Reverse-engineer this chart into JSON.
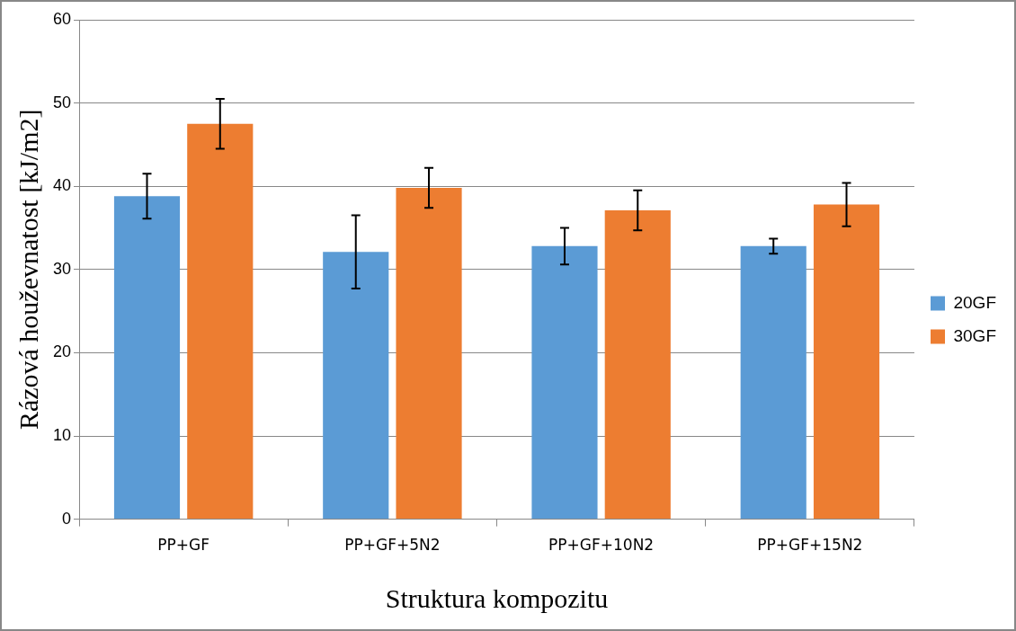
{
  "chart_data": {
    "type": "bar",
    "xlabel": "Struktura kompozitu",
    "ylabel": "Rázová houževnatost [kJ/m2]",
    "categories": [
      "PP+GF",
      "PP+GF+5N2",
      "PP+GF+10N2",
      "PP+GF+15N2"
    ],
    "series": [
      {
        "name": "20GF",
        "color": "#5b9bd5",
        "values": [
          38.8,
          32.1,
          32.8,
          32.8
        ],
        "errors": [
          2.7,
          4.4,
          2.2,
          0.9
        ]
      },
      {
        "name": "30GF",
        "color": "#ed7d31",
        "values": [
          47.5,
          39.8,
          37.1,
          37.8
        ],
        "errors": [
          3.0,
          2.4,
          2.4,
          2.6
        ]
      }
    ],
    "ylim": [
      0,
      60
    ],
    "yticks": [
      0,
      10,
      20,
      30,
      40,
      50,
      60
    ],
    "grid": "y",
    "legend": "right"
  }
}
